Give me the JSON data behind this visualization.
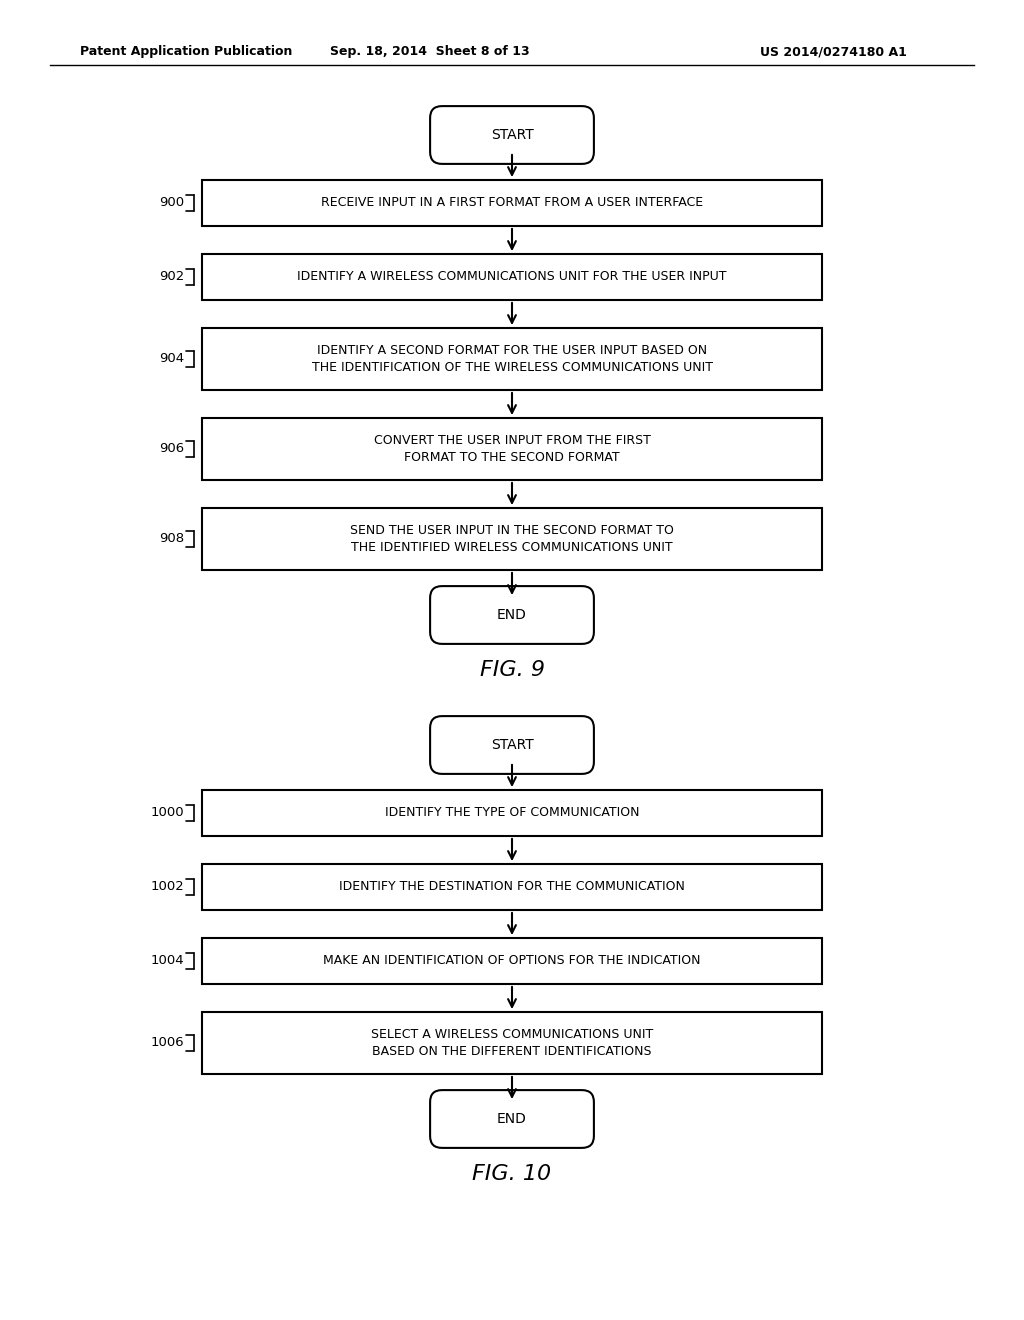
{
  "bg_color": "#ffffff",
  "header_left": "Patent Application Publication",
  "header_mid": "Sep. 18, 2014  Sheet 8 of 13",
  "header_right": "US 2014/0274180 A1",
  "fig9": {
    "title": "FIG. 9",
    "start_label": "START",
    "end_label": "END",
    "steps": [
      {
        "label": "900",
        "text": "RECEIVE INPUT IN A FIRST FORMAT FROM A USER INTERFACE",
        "lines": 1
      },
      {
        "label": "902",
        "text": "IDENTIFY A WIRELESS COMMUNICATIONS UNIT FOR THE USER INPUT",
        "lines": 1
      },
      {
        "label": "904",
        "text": "IDENTIFY A SECOND FORMAT FOR THE USER INPUT BASED ON\nTHE IDENTIFICATION OF THE WIRELESS COMMUNICATIONS UNIT",
        "lines": 2
      },
      {
        "label": "906",
        "text": "CONVERT THE USER INPUT FROM THE FIRST\nFORMAT TO THE SECOND FORMAT",
        "lines": 2
      },
      {
        "label": "908",
        "text": "SEND THE USER INPUT IN THE SECOND FORMAT TO\nTHE IDENTIFIED WIRELESS COMMUNICATIONS UNIT",
        "lines": 2
      }
    ]
  },
  "fig10": {
    "title": "FIG. 10",
    "start_label": "START",
    "end_label": "END",
    "steps": [
      {
        "label": "1000",
        "text": "IDENTIFY THE TYPE OF COMMUNICATION",
        "lines": 1
      },
      {
        "label": "1002",
        "text": "IDENTIFY THE DESTINATION FOR THE COMMUNICATION",
        "lines": 1
      },
      {
        "label": "1004",
        "text": "MAKE AN IDENTIFICATION OF OPTIONS FOR THE INDICATION",
        "lines": 1
      },
      {
        "label": "1006",
        "text": "SELECT A WIRELESS COMMUNICATIONS UNIT\nBASED ON THE DIFFERENT IDENTIFICATIONS",
        "lines": 2
      }
    ]
  }
}
